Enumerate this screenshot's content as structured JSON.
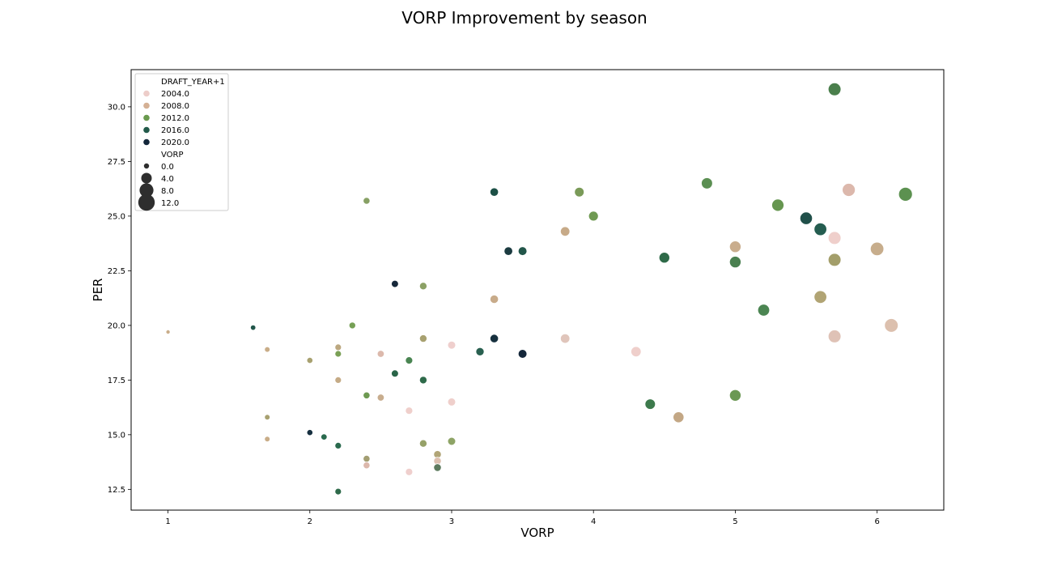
{
  "chart_data": {
    "type": "scatter",
    "title": "VORP Improvement by season",
    "xlabel": "VORP",
    "ylabel": "PER",
    "xlim": [
      0.74,
      6.47
    ],
    "ylim": [
      11.55,
      31.7
    ],
    "x_ticks": [
      {
        "value": 1,
        "label": "1"
      },
      {
        "value": 2,
        "label": "2"
      },
      {
        "value": 3,
        "label": "3"
      },
      {
        "value": 4,
        "label": "4"
      },
      {
        "value": 5,
        "label": "5"
      },
      {
        "value": 6,
        "label": "6"
      }
    ],
    "y_ticks": [
      {
        "value": 12.5,
        "label": "12.5"
      },
      {
        "value": 15.0,
        "label": "15.0"
      },
      {
        "value": 17.5,
        "label": "17.5"
      },
      {
        "value": 20.0,
        "label": "20.0"
      },
      {
        "value": 22.5,
        "label": "22.5"
      },
      {
        "value": 25.0,
        "label": "25.0"
      },
      {
        "value": 27.5,
        "label": "27.5"
      },
      {
        "value": 30.0,
        "label": "30.0"
      }
    ],
    "grid": false,
    "legend": {
      "placement": "top-left",
      "hue_title": "DRAFT_YEAR+1",
      "hue_entries": [
        {
          "label": "2004.0",
          "color": "#edcdc9"
        },
        {
          "label": "2008.0",
          "color": "#d4b094"
        },
        {
          "label": "2012.0",
          "color": "#6a9a4e"
        },
        {
          "label": "2016.0",
          "color": "#225a4a"
        },
        {
          "label": "2020.0",
          "color": "#13263a"
        }
      ],
      "size_title": "VORP",
      "size_entries": [
        {
          "label": "0.0",
          "value": 0.0
        },
        {
          "label": "4.0",
          "value": 4.0
        },
        {
          "label": "8.0",
          "value": 8.0
        },
        {
          "label": "12.0",
          "value": 12.0
        }
      ]
    },
    "points": [
      {
        "x": 5.7,
        "y": 30.8,
        "color": "#4a7f4c"
      },
      {
        "x": 5.8,
        "y": 26.2,
        "color": "#dcb8ac"
      },
      {
        "x": 6.2,
        "y": 26.0,
        "color": "#5c9150"
      },
      {
        "x": 4.8,
        "y": 26.5,
        "color": "#5b8f52"
      },
      {
        "x": 3.3,
        "y": 26.1,
        "color": "#1c5046"
      },
      {
        "x": 3.9,
        "y": 26.1,
        "color": "#7a9a58"
      },
      {
        "x": 2.4,
        "y": 25.7,
        "color": "#87a064"
      },
      {
        "x": 5.3,
        "y": 25.5,
        "color": "#669650"
      },
      {
        "x": 4.0,
        "y": 25.0,
        "color": "#6f9a52"
      },
      {
        "x": 5.5,
        "y": 24.9,
        "color": "#20504a"
      },
      {
        "x": 5.6,
        "y": 24.4,
        "color": "#255d50"
      },
      {
        "x": 3.8,
        "y": 24.3,
        "color": "#c7aa88"
      },
      {
        "x": 5.7,
        "y": 24.0,
        "color": "#efcfcb"
      },
      {
        "x": 5.0,
        "y": 23.6,
        "color": "#c9ad8d"
      },
      {
        "x": 6.0,
        "y": 23.5,
        "color": "#c7ad8c"
      },
      {
        "x": 3.4,
        "y": 23.4,
        "color": "#1b3b40"
      },
      {
        "x": 3.5,
        "y": 23.4,
        "color": "#22564a"
      },
      {
        "x": 4.5,
        "y": 23.1,
        "color": "#2e6a48"
      },
      {
        "x": 5.7,
        "y": 23.0,
        "color": "#a39e6a"
      },
      {
        "x": 5.0,
        "y": 22.9,
        "color": "#4a8050"
      },
      {
        "x": 2.6,
        "y": 21.9,
        "color": "#16283a"
      },
      {
        "x": 2.8,
        "y": 21.8,
        "color": "#8ca165"
      },
      {
        "x": 5.6,
        "y": 21.3,
        "color": "#b1a474"
      },
      {
        "x": 3.3,
        "y": 21.2,
        "color": "#c8ab8a"
      },
      {
        "x": 5.2,
        "y": 20.7,
        "color": "#4b8552"
      },
      {
        "x": 1.0,
        "y": 19.7,
        "color": "#c9ad8a"
      },
      {
        "x": 1.6,
        "y": 19.9,
        "color": "#21564a"
      },
      {
        "x": 2.3,
        "y": 20.0,
        "color": "#76a055"
      },
      {
        "x": 6.1,
        "y": 20.0,
        "color": "#dcc0ae"
      },
      {
        "x": 5.7,
        "y": 19.5,
        "color": "#dfc2b6"
      },
      {
        "x": 3.3,
        "y": 19.4,
        "color": "#16303e"
      },
      {
        "x": 2.8,
        "y": 19.4,
        "color": "#a8a170"
      },
      {
        "x": 3.8,
        "y": 19.4,
        "color": "#e0c5bb"
      },
      {
        "x": 3.0,
        "y": 19.1,
        "color": "#efcfcd"
      },
      {
        "x": 1.7,
        "y": 18.9,
        "color": "#c9ad88"
      },
      {
        "x": 2.2,
        "y": 19.0,
        "color": "#bca880"
      },
      {
        "x": 4.3,
        "y": 18.8,
        "color": "#efcfcb"
      },
      {
        "x": 3.2,
        "y": 18.8,
        "color": "#296050"
      },
      {
        "x": 2.2,
        "y": 18.7,
        "color": "#7aa056"
      },
      {
        "x": 2.5,
        "y": 18.7,
        "color": "#dcb9ac"
      },
      {
        "x": 3.5,
        "y": 18.7,
        "color": "#15273a"
      },
      {
        "x": 2.0,
        "y": 18.4,
        "color": "#a8a170"
      },
      {
        "x": 2.7,
        "y": 18.4,
        "color": "#4a8552"
      },
      {
        "x": 2.6,
        "y": 17.8,
        "color": "#2a6548"
      },
      {
        "x": 2.2,
        "y": 17.5,
        "color": "#c5ab86"
      },
      {
        "x": 2.8,
        "y": 17.5,
        "color": "#2e6a4a"
      },
      {
        "x": 2.4,
        "y": 16.8,
        "color": "#6e9a52"
      },
      {
        "x": 2.5,
        "y": 16.7,
        "color": "#c8ad8e"
      },
      {
        "x": 5.0,
        "y": 16.8,
        "color": "#6b9854"
      },
      {
        "x": 3.0,
        "y": 16.5,
        "color": "#efcfcb"
      },
      {
        "x": 4.4,
        "y": 16.4,
        "color": "#3d7a4c"
      },
      {
        "x": 2.7,
        "y": 16.1,
        "color": "#efcfcb"
      },
      {
        "x": 1.7,
        "y": 15.8,
        "color": "#a8a170"
      },
      {
        "x": 4.6,
        "y": 15.8,
        "color": "#c3a785"
      },
      {
        "x": 2.0,
        "y": 15.1,
        "color": "#173040"
      },
      {
        "x": 2.1,
        "y": 14.9,
        "color": "#2a6a4e"
      },
      {
        "x": 1.7,
        "y": 14.8,
        "color": "#c9ad88"
      },
      {
        "x": 3.0,
        "y": 14.7,
        "color": "#8ea466"
      },
      {
        "x": 2.8,
        "y": 14.6,
        "color": "#96a168"
      },
      {
        "x": 2.2,
        "y": 14.5,
        "color": "#2a6a4e"
      },
      {
        "x": 2.9,
        "y": 14.1,
        "color": "#b1a577"
      },
      {
        "x": 2.4,
        "y": 13.9,
        "color": "#a39e72"
      },
      {
        "x": 2.9,
        "y": 13.8,
        "color": "#dcc0b0"
      },
      {
        "x": 2.4,
        "y": 13.6,
        "color": "#dcb8ac"
      },
      {
        "x": 2.9,
        "y": 13.5,
        "color": "#5c7a5e"
      },
      {
        "x": 2.7,
        "y": 13.3,
        "color": "#efcfcd"
      },
      {
        "x": 2.2,
        "y": 12.4,
        "color": "#2e6a4a"
      }
    ]
  }
}
